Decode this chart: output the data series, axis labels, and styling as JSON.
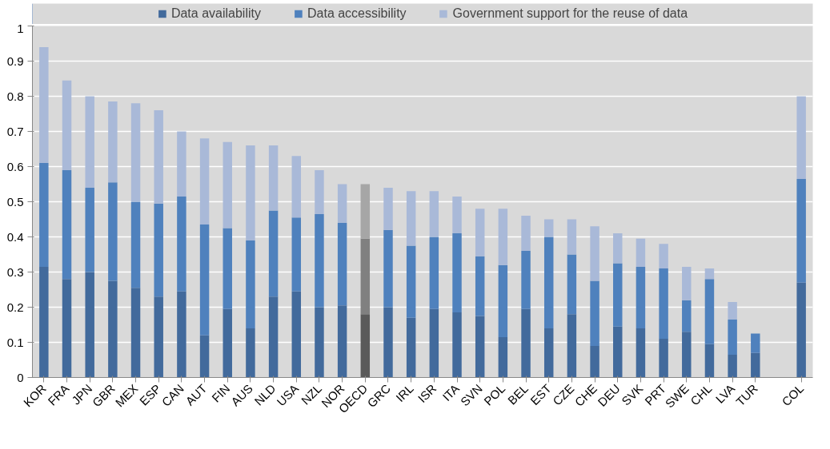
{
  "chart_data": {
    "type": "bar",
    "stacked": true,
    "legend": "top",
    "grid": "y",
    "ylim": [
      0,
      1
    ],
    "yticks": [
      0,
      0.1,
      0.2,
      0.3,
      0.4,
      0.5,
      0.6,
      0.7,
      0.8,
      0.9,
      1
    ],
    "categories": [
      "KOR",
      "FRA",
      "JPN",
      "GBR",
      "MEX",
      "ESP",
      "CAN",
      "AUT",
      "FIN",
      "AUS",
      "NLD",
      "USA",
      "NZL",
      "NOR",
      "OECD",
      "GRC",
      "IRL",
      "ISR",
      "ITA",
      "SVN",
      "POL",
      "BEL",
      "EST",
      "CZE",
      "CHE",
      "DEU",
      "SVK",
      "PRT",
      "SWE",
      "CHL",
      "LVA",
      "TUR",
      null,
      "COL"
    ],
    "series": [
      {
        "name": "Data availability",
        "color": "#426a9c",
        "colors": [
          "#426a9c",
          "#426a9c",
          "#426a9c",
          "#426a9c",
          "#426a9c",
          "#426a9c",
          "#426a9c",
          "#426a9c",
          "#426a9c",
          "#426a9c",
          "#426a9c",
          "#426a9c",
          "#426a9c",
          "#426a9c",
          "#5a5a5a",
          "#426a9c",
          "#426a9c",
          "#426a9c",
          "#426a9c",
          "#426a9c",
          "#426a9c",
          "#426a9c",
          "#426a9c",
          "#426a9c",
          "#426a9c",
          "#426a9c",
          "#426a9c",
          "#426a9c",
          "#426a9c",
          "#426a9c",
          "#426a9c",
          "#426a9c",
          "#426a9c",
          "#426a9c"
        ],
        "values": [
          0.315,
          0.28,
          0.3,
          0.275,
          0.255,
          0.23,
          0.245,
          0.12,
          0.195,
          0.14,
          0.23,
          0.245,
          0.2,
          0.205,
          0.18,
          0.2,
          0.17,
          0.195,
          0.185,
          0.175,
          0.115,
          0.195,
          0.14,
          0.18,
          0.09,
          0.145,
          0.14,
          0.11,
          0.13,
          0.095,
          0.065,
          0.07,
          null,
          0.27
        ]
      },
      {
        "name": "Data accessibility",
        "color": "#4f81bd",
        "colors": [
          "#4f81bd",
          "#4f81bd",
          "#4f81bd",
          "#4f81bd",
          "#4f81bd",
          "#4f81bd",
          "#4f81bd",
          "#4f81bd",
          "#4f81bd",
          "#4f81bd",
          "#4f81bd",
          "#4f81bd",
          "#4f81bd",
          "#4f81bd",
          "#808080",
          "#4f81bd",
          "#4f81bd",
          "#4f81bd",
          "#4f81bd",
          "#4f81bd",
          "#4f81bd",
          "#4f81bd",
          "#4f81bd",
          "#4f81bd",
          "#4f81bd",
          "#4f81bd",
          "#4f81bd",
          "#4f81bd",
          "#4f81bd",
          "#4f81bd",
          "#4f81bd",
          "#4f81bd",
          "#4f81bd",
          "#4f81bd"
        ],
        "values": [
          0.295,
          0.31,
          0.24,
          0.28,
          0.245,
          0.265,
          0.27,
          0.315,
          0.23,
          0.25,
          0.245,
          0.21,
          0.265,
          0.235,
          0.215,
          0.22,
          0.205,
          0.205,
          0.225,
          0.17,
          0.205,
          0.165,
          0.26,
          0.17,
          0.185,
          0.18,
          0.175,
          0.2,
          0.09,
          0.185,
          0.1,
          0.055,
          null,
          0.295
        ]
      },
      {
        "name": "Government support for the reuse of data",
        "color": "#a9b9d8",
        "colors": [
          "#a9b9d8",
          "#a9b9d8",
          "#a9b9d8",
          "#a9b9d8",
          "#a9b9d8",
          "#a9b9d8",
          "#a9b9d8",
          "#a9b9d8",
          "#a9b9d8",
          "#a9b9d8",
          "#a9b9d8",
          "#a9b9d8",
          "#a9b9d8",
          "#a9b9d8",
          "#a6a6a6",
          "#a9b9d8",
          "#a9b9d8",
          "#a9b9d8",
          "#a9b9d8",
          "#a9b9d8",
          "#a9b9d8",
          "#a9b9d8",
          "#a9b9d8",
          "#a9b9d8",
          "#a9b9d8",
          "#a9b9d8",
          "#a9b9d8",
          "#a9b9d8",
          "#a9b9d8",
          "#a9b9d8",
          "#a9b9d8",
          "#a9b9d8",
          "#a9b9d8",
          "#a9b9d8"
        ],
        "values": [
          0.33,
          0.255,
          0.26,
          0.23,
          0.28,
          0.265,
          0.185,
          0.245,
          0.245,
          0.27,
          0.185,
          0.175,
          0.125,
          0.11,
          0.155,
          0.12,
          0.155,
          0.13,
          0.105,
          0.135,
          0.16,
          0.1,
          0.05,
          0.1,
          0.155,
          0.085,
          0.08,
          0.07,
          0.095,
          0.03,
          0.05,
          null,
          null,
          0.235
        ]
      }
    ]
  }
}
